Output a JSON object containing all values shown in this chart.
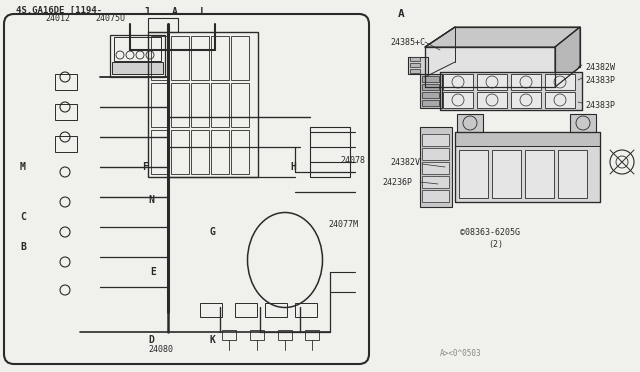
{
  "bg_color": "#f0f0ec",
  "line_color": "#2a2a2a",
  "fig_w": 6.4,
  "fig_h": 3.72,
  "dpi": 100,
  "texts": {
    "header": "4S.GA16DE [1194-",
    "pn_24012": "24012",
    "pn_24075U": "24075U",
    "pn_24078": "24078",
    "pn_24077M": "24077M",
    "pn_24080": "24080",
    "pn_24385C": "24385+C",
    "pn_24382W": "24382W",
    "pn_24383P_1": "24383P",
    "pn_24383P_2": "24383P",
    "pn_24382V": "24382V",
    "pn_24236P": "24236P",
    "pn_screw": "©08363-6205G",
    "pn_screw2": "(2)",
    "footer": "A><0^0503",
    "label_J": "J",
    "label_A_left": "A",
    "label_L": "L",
    "label_M": "M",
    "label_F": "F",
    "label_H": "H",
    "label_N": "N",
    "label_G": "G",
    "label_C": "C",
    "label_B": "B",
    "label_D": "D",
    "label_E": "E",
    "label_K": "K",
    "label_A_right": "A"
  }
}
